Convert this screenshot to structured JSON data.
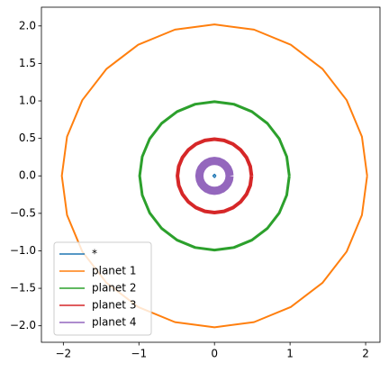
{
  "chart_data": {
    "type": "line",
    "xlim": [
      -2.29,
      2.19
    ],
    "ylim": [
      -2.22,
      2.25
    ],
    "xticks": [
      {
        "value": -2,
        "label": "−2"
      },
      {
        "value": -1,
        "label": "−1"
      },
      0,
      1,
      2
    ],
    "yticks": [
      {
        "value": -2,
        "label": "−2.0"
      },
      {
        "value": -1.5,
        "label": "−1.5"
      },
      {
        "value": -1,
        "label": "−1.0"
      },
      {
        "value": -0.5,
        "label": "−0.5"
      },
      {
        "value": 0,
        "label": "0.0"
      },
      {
        "value": 0.5,
        "label": "0.5"
      },
      {
        "value": 1,
        "label": "1.0"
      },
      {
        "value": 1.5,
        "label": "1.5"
      },
      {
        "value": 2,
        "label": "2.0"
      }
    ],
    "legend": "lower left",
    "series": [
      {
        "name": "*",
        "color": "#1f77b4",
        "x": [
          0.02,
          0,
          -0.02,
          0,
          0.02
        ],
        "values": [
          0,
          0.02,
          0,
          -0.02,
          0
        ]
      },
      {
        "name": "planet 1",
        "color": "#ff7f0e",
        "x": [
          2.02,
          1.951,
          1.749,
          1.428,
          1.01,
          0.523,
          0,
          -0.523,
          -1.01,
          -1.428,
          -1.749,
          -1.951,
          -2.02,
          -1.951,
          -1.749,
          -1.428,
          -1.01,
          -0.523,
          0,
          0.523,
          1.01,
          1.428,
          1.749,
          1.951,
          2.02
        ],
        "values": [
          0,
          0.523,
          1.01,
          1.428,
          1.749,
          1.951,
          2.02,
          1.951,
          1.749,
          1.428,
          1.01,
          0.523,
          0,
          -0.523,
          -1.01,
          -1.428,
          -1.749,
          -1.951,
          -2.02,
          -1.951,
          -1.749,
          -1.428,
          -1.01,
          -0.523,
          0
        ]
      },
      {
        "name": "planet 2",
        "color": "#2ca02c",
        "x": [
          0.99,
          0.956,
          0.857,
          0.7,
          0.495,
          0.256,
          0,
          -0.256,
          -0.495,
          -0.7,
          -0.857,
          -0.956,
          -0.99,
          -0.956,
          -0.857,
          -0.7,
          -0.495,
          -0.256,
          0,
          0.256,
          0.495,
          0.7,
          0.857,
          0.956,
          0.99
        ],
        "values": [
          0,
          0.256,
          0.495,
          0.7,
          0.857,
          0.956,
          0.99,
          0.956,
          0.857,
          0.7,
          0.495,
          0.256,
          0,
          -0.256,
          -0.495,
          -0.7,
          -0.857,
          -0.956,
          -0.99,
          -0.956,
          -0.857,
          -0.7,
          -0.495,
          -0.256,
          0
        ]
      },
      {
        "name": "planet 3",
        "color": "#d62728",
        "x": [
          0.49,
          0.473,
          0.424,
          0.346,
          0.245,
          0.127,
          0,
          -0.127,
          -0.245,
          -0.346,
          -0.424,
          -0.473,
          -0.49,
          -0.473,
          -0.424,
          -0.346,
          -0.245,
          -0.127,
          0,
          0.127,
          0.245,
          0.346,
          0.424,
          0.473,
          0.49
        ],
        "values": [
          0,
          0.127,
          0.245,
          0.346,
          0.424,
          0.473,
          0.49,
          0.473,
          0.424,
          0.346,
          0.245,
          0.127,
          0,
          -0.127,
          -0.245,
          -0.346,
          -0.424,
          -0.473,
          -0.49,
          -0.473,
          -0.424,
          -0.346,
          -0.245,
          -0.127,
          0
        ]
      },
      {
        "name": "planet 4",
        "color": "#9467bd",
        "x": [
          0.2,
          0.193,
          0.173,
          0.141,
          0.1,
          0.052,
          0,
          -0.052,
          -0.1,
          -0.141,
          -0.173,
          -0.193,
          -0.2,
          -0.193,
          -0.173,
          -0.141,
          -0.1,
          -0.052,
          0,
          0.052,
          0.1,
          0.141,
          0.173,
          0.193,
          0.2
        ],
        "values": [
          0,
          0.052,
          0.1,
          0.141,
          0.173,
          0.193,
          0.2,
          0.193,
          0.173,
          0.141,
          0.1,
          0.052,
          0,
          -0.052,
          -0.1,
          -0.141,
          -0.173,
          -0.193,
          -0.2,
          -0.193,
          -0.173,
          -0.141,
          -0.1,
          -0.052,
          0
        ]
      }
    ]
  }
}
